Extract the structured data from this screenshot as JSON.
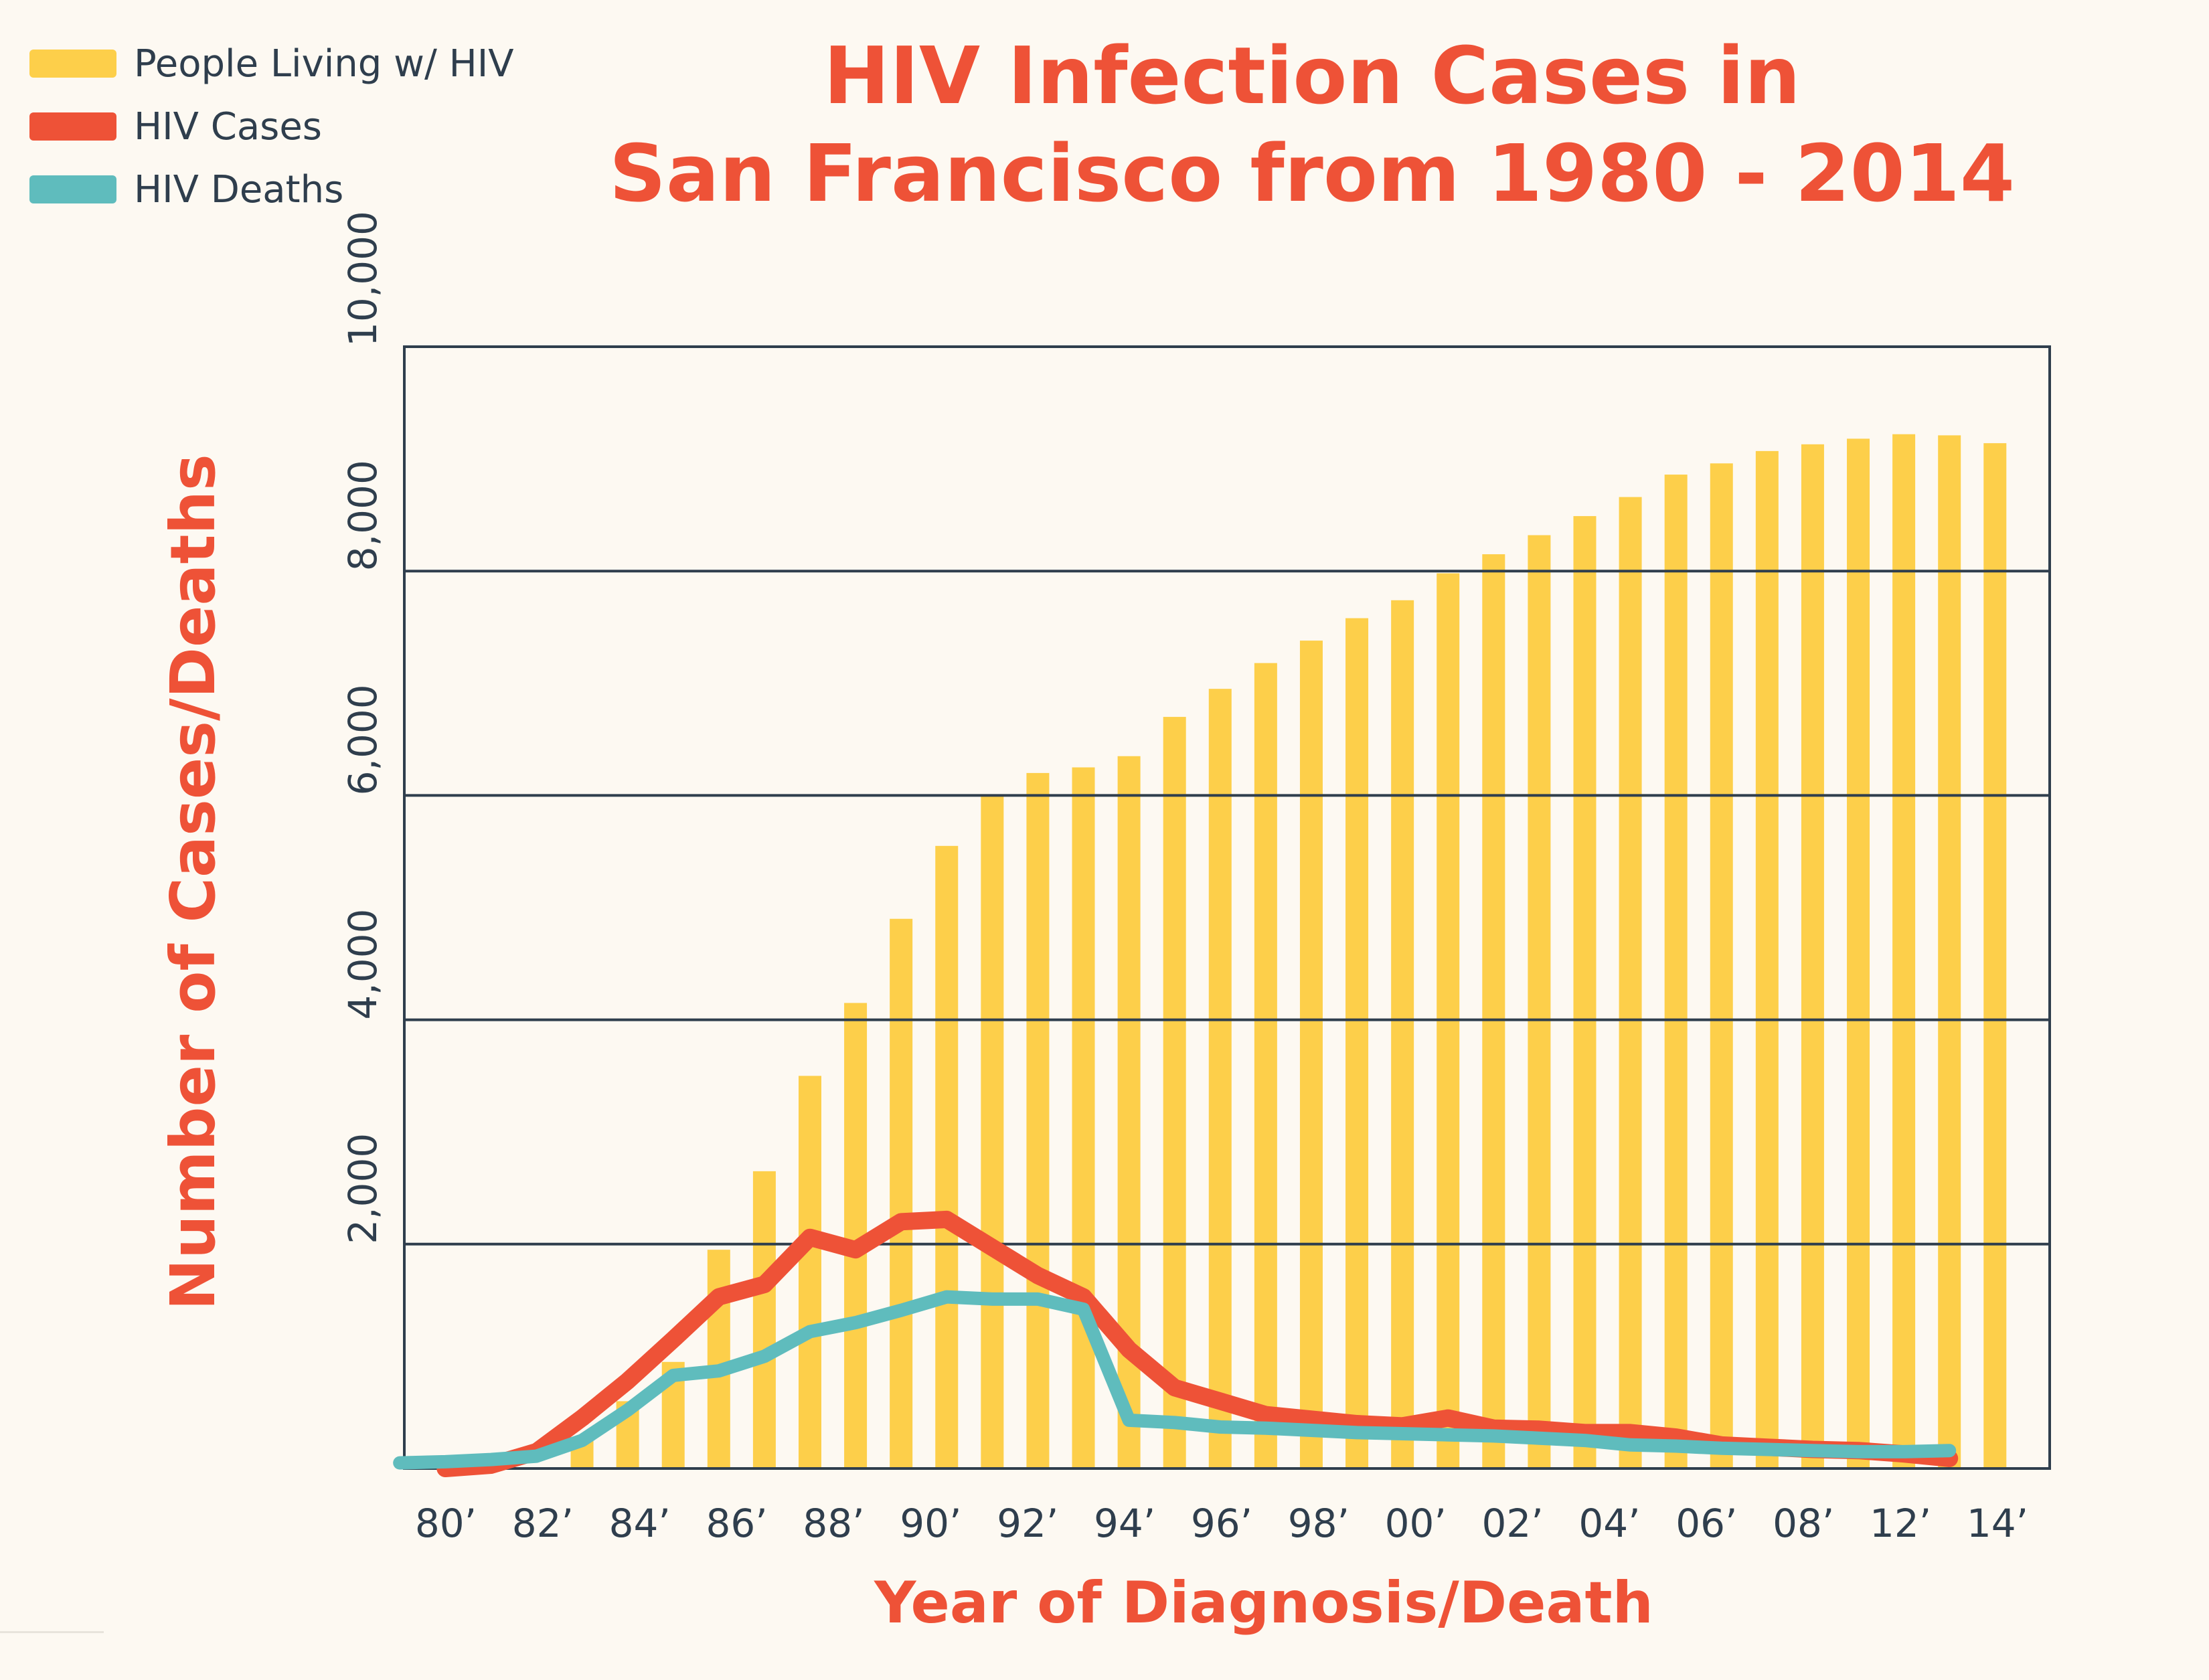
{
  "title_line1": "HIV Infection Cases in",
  "title_line2": "San Francisco from 1980 - 2014",
  "legend": [
    {
      "label": "People Living w/ HIV",
      "color": "#fdcf4a"
    },
    {
      "label": "HIV Cases",
      "color": "#ee5237"
    },
    {
      "label": "HIV Deaths",
      "color": "#5fbcbd"
    }
  ],
  "chart_data": {
    "type": "bar",
    "title": "HIV Infection Cases in San Francisco from 1980 - 2014",
    "xlabel": "Year of Diagnosis/Death",
    "ylabel": "Number of Cases/Deaths",
    "ylim": [
      0,
      10000
    ],
    "y_ticks": [
      "2,000",
      "4,000",
      "6,000",
      "8,000",
      "10,000"
    ],
    "y_tick_values": [
      2000,
      4000,
      6000,
      8000,
      10000
    ],
    "x_tick_labels": [
      "80’",
      "82’",
      "84’",
      "86’",
      "88’",
      "90’",
      "92’",
      "94’",
      "96’",
      "98’",
      "00’",
      "02’",
      "04’",
      "06’",
      "08’",
      "12’",
      "14’"
    ],
    "grid": true,
    "legend_position": "top-left",
    "bars": {
      "name": "People Living w/ HIV",
      "color": "#fdcf4a",
      "x": [
        1983,
        1984,
        1985,
        1986,
        1987,
        1988,
        1989,
        1990,
        1991,
        1992,
        1993,
        1994,
        1995,
        1996,
        1997,
        1998,
        1999,
        2000,
        2001,
        2002,
        2003,
        2004,
        2005,
        2006,
        2007,
        2008,
        2009,
        2010,
        2011,
        2012,
        2013,
        2014
      ],
      "values": [
        250,
        600,
        950,
        1950,
        2650,
        3500,
        4150,
        4900,
        5550,
        6000,
        6200,
        6250,
        6350,
        6700,
        6950,
        7180,
        7380,
        7580,
        7740,
        7980,
        8150,
        8320,
        8490,
        8660,
        8860,
        8960,
        9070,
        9130,
        9180,
        9220,
        9210,
        9140
      ]
    },
    "series": [
      {
        "name": "HIV Cases",
        "color": "#ee5237",
        "x": [
          1980,
          1981,
          1982,
          1983,
          1984,
          1985,
          1986,
          1987,
          1988,
          1989,
          1990,
          1991,
          1992,
          1993,
          1994,
          1995,
          1996,
          1997,
          1998,
          1999,
          2000,
          2001,
          2002,
          2003,
          2004,
          2005,
          2006,
          2007,
          2008,
          2009,
          2010,
          2011,
          2012,
          2013
        ],
        "values": [
          0,
          30,
          150,
          450,
          780,
          1150,
          1530,
          1640,
          2060,
          1950,
          2200,
          2220,
          1970,
          1720,
          1530,
          1060,
          720,
          600,
          480,
          440,
          400,
          380,
          450,
          360,
          350,
          320,
          320,
          280,
          210,
          190,
          170,
          160,
          130,
          90
        ]
      },
      {
        "name": "HIV Deaths",
        "color": "#5fbcbd",
        "x": [
          1979,
          1980,
          1981,
          1982,
          1983,
          1984,
          1985,
          1986,
          1987,
          1988,
          1989,
          1990,
          1991,
          1992,
          1993,
          1994,
          1995,
          1996,
          1997,
          1998,
          1999,
          2000,
          2001,
          2002,
          2003,
          2004,
          2005,
          2006,
          2007,
          2008,
          2009,
          2010,
          2011,
          2012,
          2013
        ],
        "values": [
          50,
          60,
          80,
          110,
          250,
          520,
          830,
          870,
          1000,
          1220,
          1300,
          1410,
          1530,
          1510,
          1510,
          1420,
          430,
          410,
          370,
          360,
          340,
          320,
          310,
          300,
          290,
          270,
          250,
          210,
          200,
          180,
          170,
          160,
          150,
          150,
          160
        ]
      }
    ]
  }
}
